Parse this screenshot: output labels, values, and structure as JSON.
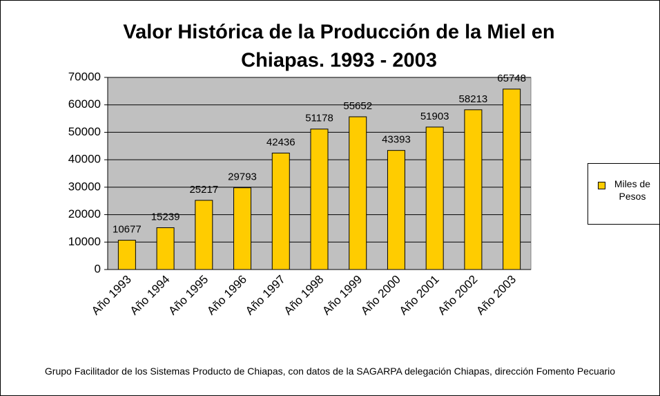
{
  "chart_data": {
    "type": "bar",
    "title": [
      "Valor Histórica de la Producción de la Miel en",
      "Chiapas.  1993 - 2003"
    ],
    "source": "Grupo Facilitador de los Sistemas Producto de Chiapas, con datos de la SAGARPA delegación Chiapas, dirección Fomento Pecuario",
    "categories": [
      "Año 1993",
      "Año 1994",
      "Año 1995",
      "Año 1996",
      "Año 1997",
      "Año 1998",
      "Año 1999",
      "Año 2000",
      "Año 2001",
      "Año 2002",
      "Año 2003"
    ],
    "series": [
      {
        "name": "Miles de Pesos",
        "color": "#ffcc00",
        "values": [
          10677,
          15239,
          25217,
          29793,
          42436,
          51178,
          55652,
          43393,
          51903,
          58213,
          65748
        ]
      }
    ],
    "ylim": [
      0,
      70000
    ],
    "yticks": [
      0,
      10000,
      20000,
      30000,
      40000,
      50000,
      60000,
      70000
    ],
    "grid": true,
    "plot_background": "#c0c0c0",
    "legend": "right"
  }
}
